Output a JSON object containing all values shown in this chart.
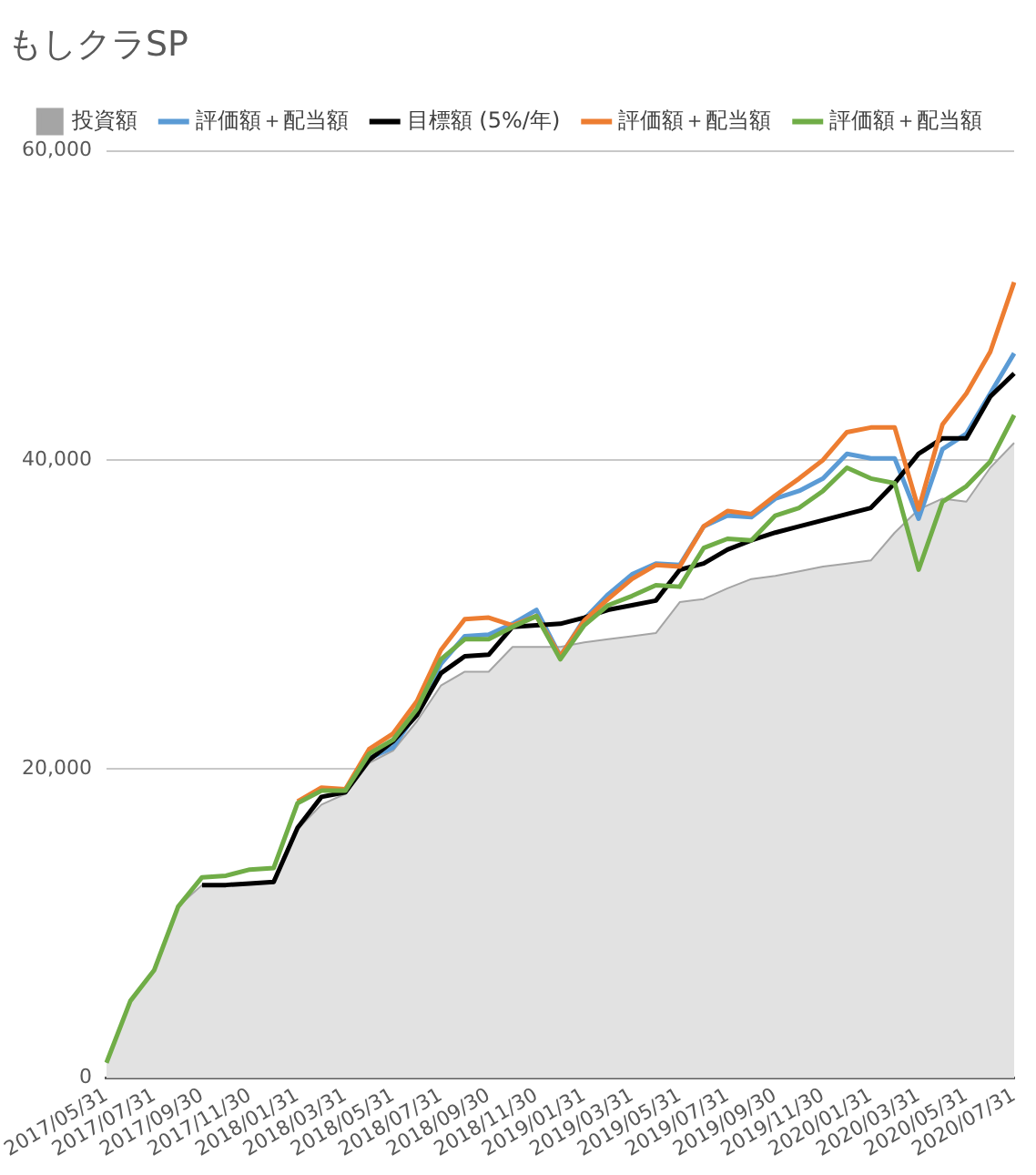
{
  "chart_data": {
    "type": "line",
    "title": "もしクラSP",
    "categories": [
      "2017/05/31",
      null,
      "2017/07/31",
      null,
      "2017/09/30",
      null,
      "2017/11/30",
      null,
      "2018/01/31",
      null,
      "2018/03/31",
      null,
      "2018/05/31",
      null,
      "2018/07/31",
      null,
      "2018/09/30",
      null,
      "2018/11/30",
      null,
      "2019/01/31",
      null,
      "2019/03/31",
      null,
      "2019/05/31",
      null,
      "2019/07/31",
      null,
      "2019/09/30",
      null,
      "2019/11/30",
      null,
      "2020/01/31",
      null,
      "2020/03/31",
      null,
      "2020/05/31",
      null,
      "2020/07/31"
    ],
    "series": [
      {
        "name": "投資額",
        "type": "area",
        "color": "#a5a5a5",
        "values": [
          1000,
          5000,
          7000,
          11100,
          12500,
          12500,
          12600,
          12600,
          16100,
          17700,
          18400,
          20400,
          21200,
          23100,
          25400,
          26300,
          26300,
          27900,
          27900,
          27900,
          28200,
          28400,
          28600,
          28800,
          30800,
          31000,
          31700,
          32300,
          32500,
          32800,
          33100,
          33300,
          33500,
          35300,
          36800,
          37500,
          37300,
          39500,
          41100
        ]
      },
      {
        "name": "評価額＋配当額",
        "color": "#5b9bd5",
        "values": [
          null,
          null,
          null,
          null,
          null,
          null,
          null,
          null,
          null,
          null,
          18600,
          20700,
          21400,
          23700,
          26800,
          28600,
          28700,
          29400,
          30300,
          27300,
          29700,
          31300,
          32600,
          33300,
          33200,
          35700,
          36400,
          36300,
          37500,
          38000,
          38800,
          40400,
          40100,
          40100,
          36200,
          40700,
          41700,
          44300,
          46900
        ]
      },
      {
        "name": "目標額 (5%/年)",
        "color": "#000000",
        "values": [
          null,
          null,
          null,
          null,
          12500,
          12500,
          12600,
          12700,
          16200,
          18200,
          18500,
          20600,
          21800,
          23500,
          26200,
          27300,
          27400,
          29200,
          29300,
          29400,
          29800,
          30300,
          30600,
          30900,
          32900,
          33300,
          34200,
          34800,
          35300,
          35700,
          36100,
          36500,
          36900,
          38500,
          40400,
          41400,
          41400,
          44100,
          45600
        ]
      },
      {
        "name": "評価額＋配当額",
        "color": "#ed7d31",
        "values": [
          null,
          null,
          null,
          null,
          null,
          null,
          null,
          null,
          17900,
          18800,
          18700,
          21300,
          22300,
          24400,
          27700,
          29700,
          29800,
          29300,
          29900,
          27300,
          29600,
          31000,
          32300,
          33200,
          33100,
          35700,
          36700,
          36500,
          37700,
          38800,
          40000,
          41800,
          42100,
          42100,
          36800,
          42300,
          44300,
          47000,
          51500
        ]
      },
      {
        "name": "評価額＋配当額",
        "color": "#70ad47",
        "values": [
          1000,
          5000,
          7000,
          11100,
          13000,
          13100,
          13500,
          13600,
          17800,
          18600,
          18600,
          21000,
          21900,
          23900,
          27100,
          28400,
          28400,
          29200,
          29900,
          27100,
          29300,
          30600,
          31200,
          31900,
          31800,
          34300,
          34900,
          34800,
          36400,
          36900,
          38000,
          39500,
          38800,
          38500,
          32900,
          37300,
          38300,
          39900,
          42900
        ]
      }
    ],
    "ylim": [
      0,
      60000
    ],
    "yticks": [
      0,
      {
        "value": 20000,
        "label": "20,000"
      },
      {
        "value": 40000,
        "label": "40,000"
      },
      {
        "value": 60000,
        "label": "60,000"
      }
    ],
    "grid": "y",
    "legend": "top",
    "marker": "none",
    "line_style": "solid"
  }
}
